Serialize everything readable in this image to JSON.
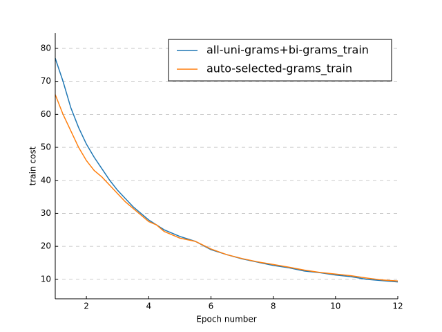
{
  "chart_data": {
    "type": "line",
    "x_label": "Epoch number",
    "y_label": "train cost",
    "x": [
      1,
      1.25,
      1.5,
      1.75,
      2,
      2.25,
      2.5,
      2.75,
      3,
      3.25,
      3.5,
      3.75,
      4,
      4.25,
      4.5,
      5,
      5.5,
      6,
      6.5,
      7,
      7.5,
      8,
      8.5,
      9,
      9.5,
      10,
      10.5,
      11,
      11.5,
      12
    ],
    "series": [
      {
        "name": "all-uni-grams+bi-grams_train",
        "color": "#1f77b4",
        "values": [
          77,
          70,
          62,
          56,
          51,
          47,
          43.5,
          40,
          37,
          34.5,
          32,
          30,
          28,
          26.5,
          25,
          23,
          21.5,
          19,
          17.5,
          16.2,
          15.2,
          14.2,
          13.5,
          12.5,
          12,
          11.3,
          10.8,
          10,
          9.6,
          9.2
        ]
      },
      {
        "name": "auto-selected-grams_train",
        "color": "#ff7f0e",
        "values": [
          66,
          60,
          55,
          50,
          46,
          43,
          41,
          38.5,
          36,
          33.5,
          31.5,
          29.5,
          27.5,
          26.5,
          24.5,
          22.5,
          21.5,
          19.2,
          17.5,
          16.3,
          15.3,
          14.5,
          13.7,
          12.8,
          12.1,
          11.6,
          11.1,
          10.4,
          9.8,
          9.5
        ]
      }
    ],
    "xlim": [
      1,
      12
    ],
    "xticks": [
      2,
      4,
      6,
      8,
      10,
      12
    ],
    "ylim": [
      4.1,
      84.6
    ],
    "yticks": [
      10,
      20,
      30,
      40,
      50,
      60,
      70,
      80
    ],
    "grid": true,
    "legend": "upper right"
  }
}
